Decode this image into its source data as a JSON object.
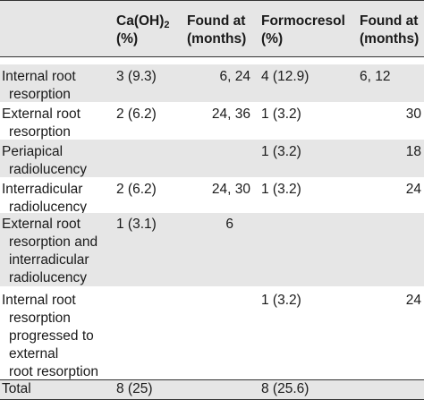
{
  "header": {
    "col1_line1": "Ca(OH)",
    "col1_sub": "2",
    "col1_line2": "(%)",
    "col2_line1": "Found at",
    "col2_line2": "(months)",
    "col3_line1": "Formocresol",
    "col3_line2": "(%)",
    "col4_line1": "Found at",
    "col4_line2": "(months)"
  },
  "rows": [
    {
      "label": [
        "Internal root",
        "resorption"
      ],
      "caoh": "3 (9.3)",
      "found1": "6, 24",
      "formo": "4 (12.9)",
      "found2": "6, 12",
      "shaded": true
    },
    {
      "label": [
        "External root",
        "resorption"
      ],
      "caoh": "2 (6.2)",
      "found1": "24, 36",
      "formo": "1 (3.2)",
      "found2": "30",
      "shaded": false
    },
    {
      "label": [
        "Periapical",
        "radiolucency"
      ],
      "caoh": "",
      "found1": "",
      "formo": "1 (3.2)",
      "found2": "18",
      "shaded": true
    },
    {
      "label": [
        "Interradicular",
        "radiolucency"
      ],
      "caoh": "2 (6.2)",
      "found1": "24, 30",
      "formo": "1 (3.2)",
      "found2": "24",
      "shaded": false
    },
    {
      "label": [
        "External root",
        "resorption and",
        "interradicular",
        "radiolucency"
      ],
      "caoh": "1 (3.1)",
      "found1": "6",
      "formo": "",
      "found2": "",
      "shaded": true
    },
    {
      "label": [
        "Internal root",
        "resorption",
        "progressed to",
        "external",
        "root resorption"
      ],
      "caoh": "",
      "found1": "",
      "formo": "1 (3.2)",
      "found2": "24",
      "shaded": false
    },
    {
      "label": [
        "Total"
      ],
      "caoh": "8 (25)",
      "found1": "",
      "formo": "8 (25.6)",
      "found2": "",
      "shaded": true
    }
  ]
}
